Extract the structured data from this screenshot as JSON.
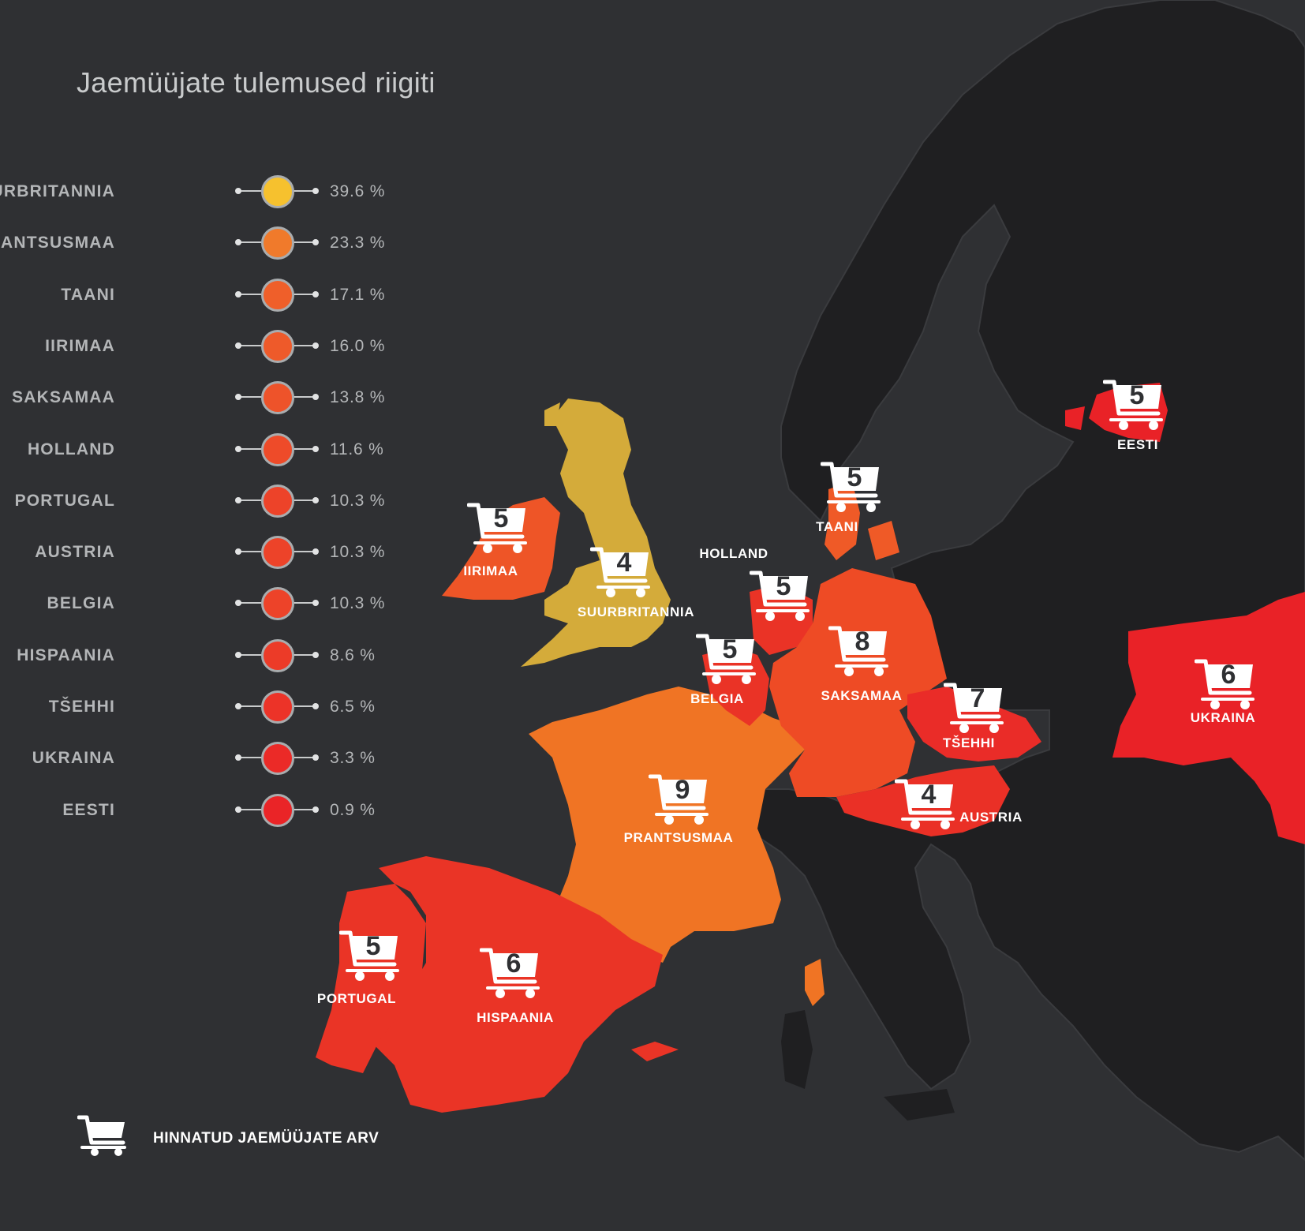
{
  "title": "Jaemüüjate tulemused riigiti",
  "legend": [
    {
      "country": "SUURBRITANNIA",
      "value": "39.6 %",
      "color": "#f6c12e"
    },
    {
      "country": "PRANTSUSMAA",
      "value": "23.3 %",
      "color": "#f07a2b"
    },
    {
      "country": "TAANI",
      "value": "17.1 %",
      "color": "#ef5f2a"
    },
    {
      "country": "IIRIMAA",
      "value": "16.0 %",
      "color": "#ee5a2a"
    },
    {
      "country": "SAKSAMAA",
      "value": "13.8 %",
      "color": "#ee532a"
    },
    {
      "country": "HOLLAND",
      "value": "11.6 %",
      "color": "#ee4b29"
    },
    {
      "country": "PORTUGAL",
      "value": "10.3 %",
      "color": "#ed4329"
    },
    {
      "country": "AUSTRIA",
      "value": "10.3 %",
      "color": "#ed4329"
    },
    {
      "country": "BELGIA",
      "value": "10.3 %",
      "color": "#ed4329"
    },
    {
      "country": "HISPAANIA",
      "value": "8.6 %",
      "color": "#ec3b28"
    },
    {
      "country": "TŠEHHI",
      "value": "6.5 %",
      "color": "#ec3328"
    },
    {
      "country": "UKRAINA",
      "value": "3.3 %",
      "color": "#eb2a27"
    },
    {
      "country": "EESTI",
      "value": "0.9 %",
      "color": "#ea2427"
    }
  ],
  "map_countries": [
    {
      "label": "SUURBRITANNIA",
      "retailers": "4"
    },
    {
      "label": "IIRIMAA",
      "retailers": "5"
    },
    {
      "label": "TAANI",
      "retailers": "5"
    },
    {
      "label": "EESTI",
      "retailers": "5"
    },
    {
      "label": "HOLLAND",
      "retailers": "5"
    },
    {
      "label": "BELGIA",
      "retailers": "5"
    },
    {
      "label": "SAKSAMAA",
      "retailers": "8"
    },
    {
      "label": "TŠEHHI",
      "retailers": "7"
    },
    {
      "label": "UKRAINA",
      "retailers": "6"
    },
    {
      "label": "PRANTSUSMAA",
      "retailers": "9"
    },
    {
      "label": "AUSTRIA",
      "retailers": "4"
    },
    {
      "label": "PORTUGAL",
      "retailers": "5"
    },
    {
      "label": "HISPAANIA",
      "retailers": "6"
    }
  ],
  "bottom_legend": {
    "icon": "cart-icon",
    "label": "HINNATUD JAEMÜÜJATE ARV"
  },
  "colors": {
    "background": "#2f3033",
    "land_other": "#1f1f21",
    "border": "#3a3b3e",
    "uk": "#d4ab3a",
    "france": "#f07424",
    "ireland": "#ee5527",
    "germany": "#ee4b25",
    "denmark": "#ef5a27",
    "netherlands": "#ea3326",
    "belgium": "#ea3326",
    "spain": "#ea3426",
    "portugal": "#ea3426",
    "austria": "#ea3026",
    "czech": "#ea2c28",
    "ukraine": "#e92227",
    "estonia": "#e92227"
  }
}
